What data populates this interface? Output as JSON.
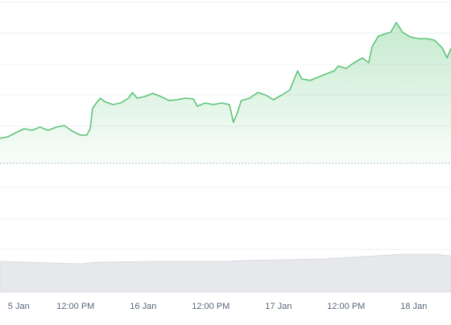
{
  "chart_data": [
    {
      "type": "area",
      "x": [
        -1.4,
        0,
        1.4,
        2.9,
        4.3,
        5.7,
        7.1,
        8.6,
        10,
        11.4,
        12.9,
        14,
        14.6,
        15,
        15.7,
        16.4,
        17.1,
        18.6,
        20,
        21.4,
        22.1,
        22.9,
        24.3,
        25.7,
        27.1,
        28.6,
        30,
        31.4,
        32.9,
        33.6,
        35,
        36.4,
        37.9,
        39.3,
        40,
        40.7,
        41.4,
        42.9,
        44.3,
        45.7,
        47.1,
        48.6,
        50,
        50.7,
        51.4,
        52.1,
        53.6,
        55,
        56.4,
        57.9,
        58.6,
        60,
        61.4,
        62.9,
        64,
        64.6,
        65.7,
        66.9,
        67.9,
        68.9,
        70,
        71.4,
        72.9,
        74.3,
        75.7,
        77.1,
        77.9,
        78.6
      ],
      "values": [
        15.5,
        16.5,
        19,
        21.5,
        20.5,
        22.5,
        20.5,
        22.5,
        23.5,
        20,
        17.5,
        17.5,
        21.5,
        34,
        37.5,
        40.5,
        38.5,
        36.5,
        37.5,
        40.5,
        44,
        40.5,
        41.5,
        43.5,
        41.5,
        39,
        39.5,
        40.5,
        40,
        35.5,
        37.5,
        36.5,
        37.5,
        36.5,
        25.5,
        31.5,
        39,
        40.5,
        44,
        42.5,
        39.5,
        42.5,
        45.5,
        51.5,
        57.5,
        52.5,
        51.5,
        53.5,
        55.5,
        57.5,
        60.5,
        59,
        62.5,
        65.5,
        62.5,
        72.5,
        79,
        80.5,
        81.5,
        87.5,
        81.5,
        78.5,
        77.5,
        77.5,
        76.5,
        71.5,
        65.5,
        71.5
      ],
      "color": "#5cc477",
      "xlim": [
        -1.4,
        78.6
      ],
      "ylim": [
        0,
        100
      ],
      "xticks": [
        {
          "value": 0,
          "label": "5 Jan"
        },
        {
          "value": 12,
          "label": "12:00 PM"
        },
        {
          "value": 24,
          "label": "16 Jan"
        },
        {
          "value": 36,
          "label": "12:00 PM"
        },
        {
          "value": 48,
          "label": "17 Jan"
        },
        {
          "value": 60,
          "label": "12:00 PM"
        },
        {
          "value": 72,
          "label": "18 Jan"
        }
      ]
    },
    {
      "type": "volume",
      "x": [
        -1.4,
        12.9,
        15.7,
        27.1,
        38.6,
        41.4,
        55.7,
        70,
        75.7,
        78.6
      ],
      "values": [
        38,
        35,
        37,
        38,
        38,
        39,
        41,
        47,
        47,
        45
      ],
      "color": "#e6e8ec",
      "xlim": [
        -1.4,
        78.6
      ],
      "ylim": [
        0,
        53
      ]
    }
  ]
}
